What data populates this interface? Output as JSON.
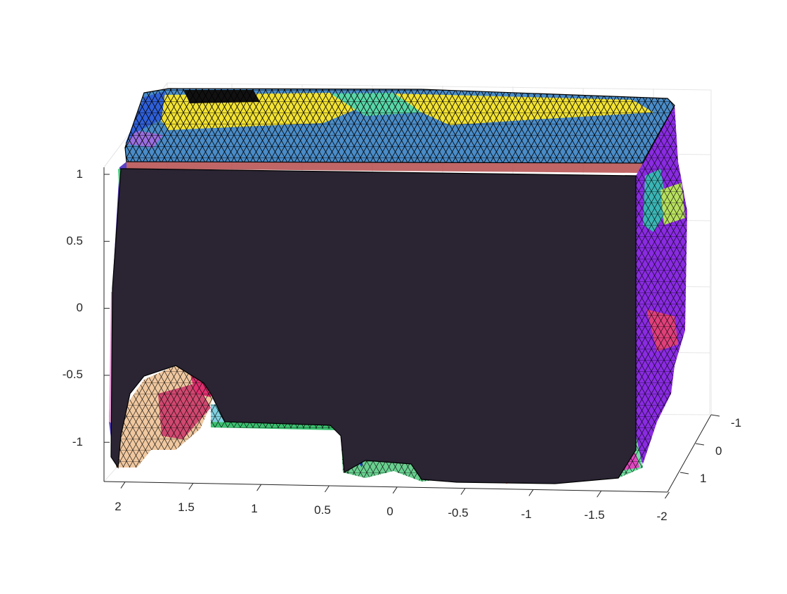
{
  "chart_data": {
    "type": "mesh-3d",
    "title": "",
    "xlabel": "",
    "ylabel": "",
    "zlabel": "",
    "x_ticks": [
      "2",
      "1.5",
      "1",
      "0.5",
      "0",
      "-0.5",
      "-1",
      "-1.5",
      "-2"
    ],
    "y_ticks": [
      "-1",
      "0",
      "1"
    ],
    "z_ticks": [
      "1",
      "0.5",
      "0",
      "-0.5",
      "-1"
    ],
    "xlim": [
      -2,
      2.2
    ],
    "ylim": [
      -1.2,
      1.2
    ],
    "zlim": [
      -1.25,
      1.25
    ],
    "grid": true,
    "colors": {
      "front_face": "#2a2433",
      "top_face": "#4a8cc8",
      "top_patches": "#f2e233",
      "right_face": "#8a2be2",
      "mesh_lines": "#000000"
    }
  }
}
